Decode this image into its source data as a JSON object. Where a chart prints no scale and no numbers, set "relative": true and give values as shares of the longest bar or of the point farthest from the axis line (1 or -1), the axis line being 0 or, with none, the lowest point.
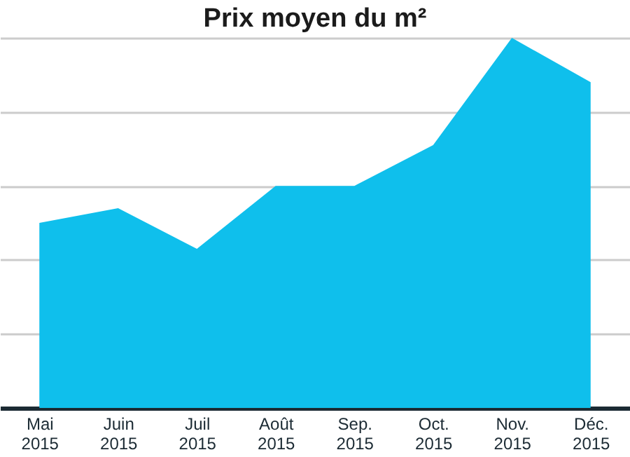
{
  "chart_data": {
    "type": "area",
    "title": "Prix moyen du m²",
    "relative": true,
    "grid": "y",
    "categories": [
      "Mai 2015",
      "Juin 2015",
      "Juil 2015",
      "Août 2015",
      "Sep. 2015",
      "Oct. 2015",
      "Nov. 2015",
      "Déc. 2015"
    ],
    "series": [
      {
        "color": "#0fbfec",
        "values": [
          0.5,
          0.54,
          0.43,
          0.6,
          0.6,
          0.71,
          1,
          0.88
        ]
      }
    ]
  }
}
